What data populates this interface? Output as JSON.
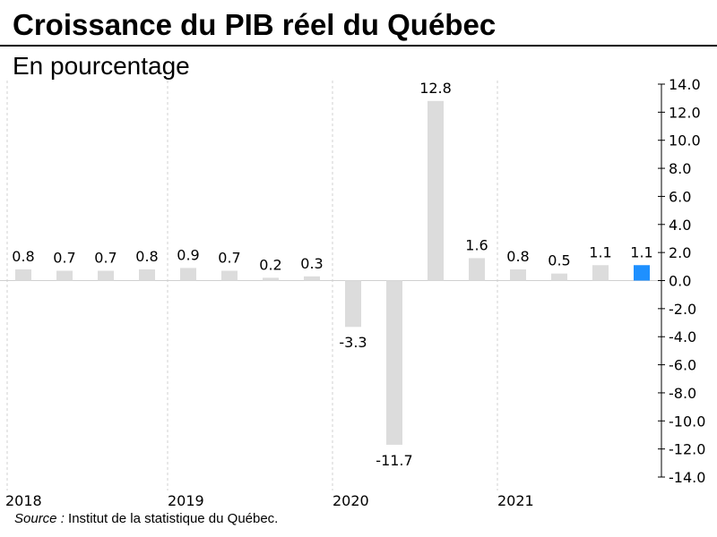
{
  "header": {
    "title": "Croissance du PIB réel du Québec",
    "subtitle": "En pourcentage"
  },
  "footer": {
    "source_label": "Source :",
    "source_text": " Institut de la statistique du Québec."
  },
  "colors": {
    "bar": "#dcdcdc",
    "highlight": "#1e90ff",
    "grid": "#d0d0d0",
    "axis": "#000000"
  },
  "chart_data": {
    "type": "bar",
    "title": "Croissance du PIB réel du Québec",
    "subtitle": "En pourcentage",
    "categories": [
      "2018",
      "",
      "",
      "",
      "2019",
      "",
      "",
      "",
      "2020",
      "",
      "",
      "",
      "2021",
      "",
      "",
      ""
    ],
    "values": [
      0.8,
      0.7,
      0.7,
      0.8,
      0.9,
      0.7,
      0.2,
      0.3,
      -3.3,
      -11.7,
      12.8,
      1.6,
      0.8,
      0.5,
      1.1,
      1.1
    ],
    "data_labels": [
      "0.8",
      "0.7",
      "0.7",
      "0.8",
      "0.9",
      "0.7",
      "0.2",
      "0.3",
      "-3.3",
      "-11.7",
      "12.8",
      "1.6",
      "0.8",
      "0.5",
      "1.1",
      "1.1"
    ],
    "highlight_index": 15,
    "ylim": [
      -14,
      14
    ],
    "y_ticks": [
      "14.0",
      "12.0",
      "10.0",
      "8.0",
      "6.0",
      "4.0",
      "2.0",
      "0.0",
      "-2.0",
      "-4.0",
      "-6.0",
      "-8.0",
      "-10.0",
      "-12.0",
      "-14.0"
    ],
    "y_axis_position": "right",
    "year_labels": [
      "2018",
      "2019",
      "2020",
      "2021"
    ],
    "grid": "vertical dashed lines between years",
    "xlabel": "",
    "ylabel": ""
  }
}
